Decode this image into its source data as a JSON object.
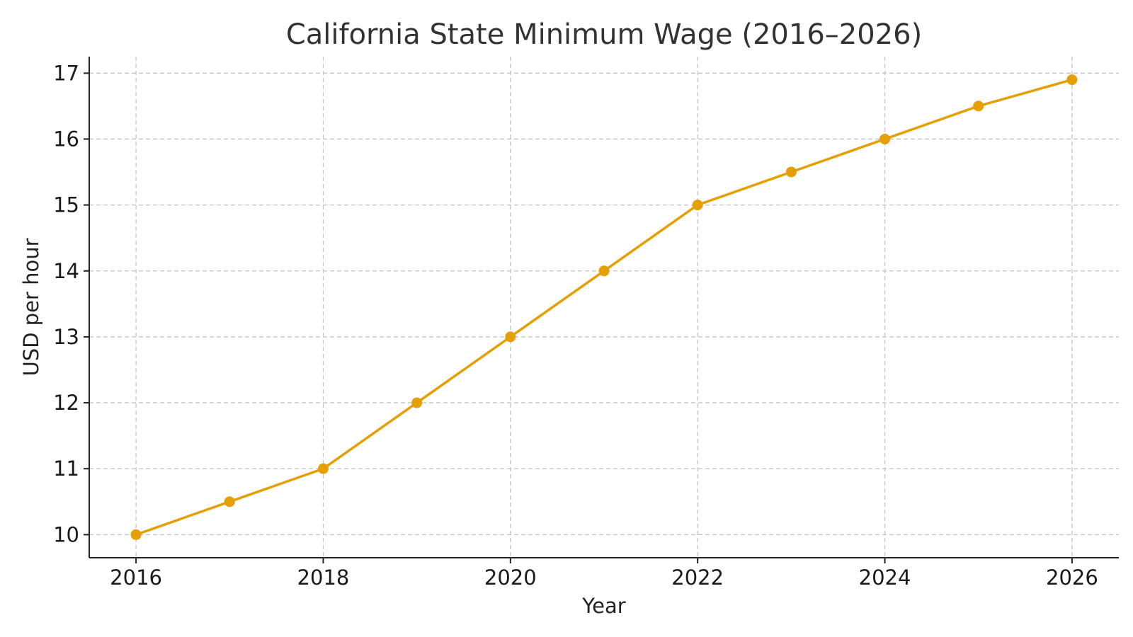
{
  "chart_data": {
    "type": "line",
    "title": "California State Minimum Wage (2016–2026)",
    "xlabel": "Year",
    "ylabel": "USD per hour",
    "x": [
      2016,
      2017,
      2018,
      2019,
      2020,
      2021,
      2022,
      2023,
      2024,
      2025,
      2026
    ],
    "series": [
      {
        "values": [
          10,
          10.5,
          11,
          12,
          13,
          14,
          15,
          15.5,
          16,
          16.5,
          16.9
        ],
        "color": "#E69F00",
        "marker": "circle"
      }
    ],
    "xticks": [
      "2016",
      "2018",
      "2020",
      "2022",
      "2024",
      "2026"
    ],
    "yticks": [
      "10",
      "11",
      "12",
      "13",
      "14",
      "15",
      "16",
      "17"
    ],
    "xlim": [
      2015.5,
      2026.5
    ],
    "ylim": [
      9.65,
      17.25
    ],
    "grid": true,
    "legend": "none"
  }
}
